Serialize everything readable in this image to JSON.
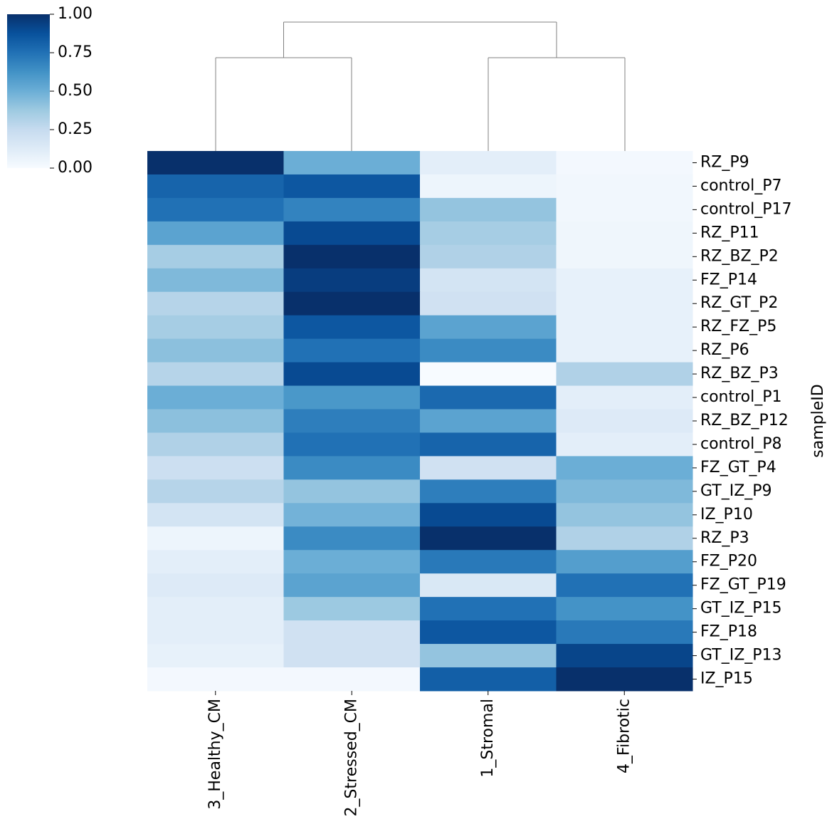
{
  "chart_data": {
    "type": "heatmap",
    "ylabel": "sampleID",
    "rows": [
      "RZ_P9",
      "control_P7",
      "control_P17",
      "RZ_P11",
      "RZ_BZ_P2",
      "FZ_P14",
      "RZ_GT_P2",
      "RZ_FZ_P5",
      "RZ_P6",
      "RZ_BZ_P3",
      "control_P1",
      "RZ_BZ_P12",
      "control_P8",
      "FZ_GT_P4",
      "GT_IZ_P9",
      "IZ_P10",
      "RZ_P3",
      "FZ_P20",
      "FZ_GT_P19",
      "GT_IZ_P15",
      "FZ_P18",
      "GT_IZ_P13",
      "IZ_P15"
    ],
    "columns": [
      "3_Healthy_CM",
      "2_Stressed_CM",
      "1_Stromal",
      "4_Fibrotic"
    ],
    "values": [
      [
        1.0,
        0.5,
        0.1,
        0.02
      ],
      [
        0.8,
        0.85,
        0.05,
        0.03
      ],
      [
        0.75,
        0.68,
        0.4,
        0.03
      ],
      [
        0.55,
        0.9,
        0.35,
        0.04
      ],
      [
        0.35,
        1.0,
        0.32,
        0.04
      ],
      [
        0.45,
        0.95,
        0.18,
        0.08
      ],
      [
        0.3,
        1.0,
        0.2,
        0.08
      ],
      [
        0.35,
        0.85,
        0.55,
        0.08
      ],
      [
        0.42,
        0.75,
        0.65,
        0.08
      ],
      [
        0.3,
        0.9,
        0.0,
        0.32
      ],
      [
        0.5,
        0.6,
        0.78,
        0.1
      ],
      [
        0.42,
        0.7,
        0.55,
        0.13
      ],
      [
        0.32,
        0.75,
        0.8,
        0.1
      ],
      [
        0.22,
        0.65,
        0.2,
        0.5
      ],
      [
        0.3,
        0.4,
        0.7,
        0.45
      ],
      [
        0.18,
        0.48,
        0.9,
        0.4
      ],
      [
        0.05,
        0.65,
        1.0,
        0.32
      ],
      [
        0.1,
        0.5,
        0.72,
        0.57
      ],
      [
        0.13,
        0.55,
        0.15,
        0.75
      ],
      [
        0.1,
        0.38,
        0.75,
        0.62
      ],
      [
        0.1,
        0.2,
        0.85,
        0.72
      ],
      [
        0.08,
        0.2,
        0.4,
        0.92
      ],
      [
        0.02,
        0.02,
        0.82,
        1.0
      ]
    ],
    "colormap": "Blues",
    "clim": [
      0,
      1
    ],
    "cticks": [
      {
        "value": 0,
        "label": "0.00"
      },
      {
        "value": 0.25,
        "label": "0.25"
      },
      {
        "value": 0.5,
        "label": "0.50"
      },
      {
        "value": 0.75,
        "label": "0.75"
      },
      {
        "value": 1,
        "label": "1.00"
      }
    ]
  }
}
